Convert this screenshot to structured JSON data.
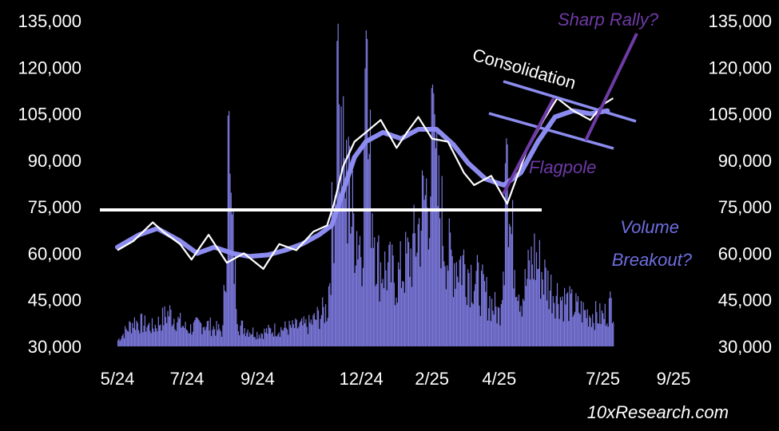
{
  "chart_data": {
    "type": "line",
    "title": "",
    "xlabel": "",
    "ylabel": "",
    "ylim": [
      30000,
      135000
    ],
    "x_ticks": [
      "5/24",
      "7/24",
      "9/24",
      "12/24",
      "2/25",
      "4/25",
      "7/25",
      "9/25"
    ],
    "y_ticks_left": [
      "135,000",
      "120,000",
      "105,000",
      "90,000",
      "75,000",
      "60,000",
      "45,000",
      "30,000"
    ],
    "y_ticks_right": [
      "135,000",
      "120,000",
      "105,000",
      "90,000",
      "75,000",
      "60,000",
      "45,000",
      "30,000"
    ],
    "grid": false,
    "series": [
      {
        "kind": "price",
        "color": "#ffffff",
        "x": [
          "2024-05-01",
          "2024-05-15",
          "2024-06-01",
          "2024-06-10",
          "2024-06-25",
          "2024-07-05",
          "2024-07-20",
          "2024-08-05",
          "2024-08-20",
          "2024-09-06",
          "2024-09-20",
          "2024-10-05",
          "2024-10-20",
          "2024-11-01",
          "2024-11-07",
          "2024-11-15",
          "2024-11-25",
          "2024-12-05",
          "2024-12-18",
          "2025-01-01",
          "2025-01-10",
          "2025-01-20",
          "2025-02-01",
          "2025-02-15",
          "2025-03-01",
          "2025-03-10",
          "2025-03-25",
          "2025-04-08",
          "2025-04-25",
          "2025-05-10",
          "2025-05-22",
          "2025-06-05",
          "2025-06-20",
          "2025-07-01",
          "2025-07-10"
        ],
        "values": [
          61000,
          64000,
          70000,
          67000,
          63000,
          58000,
          66000,
          57000,
          60000,
          55000,
          63000,
          61000,
          67000,
          69000,
          76000,
          88000,
          96000,
          99000,
          103000,
          94000,
          99000,
          104000,
          97000,
          96000,
          86000,
          82000,
          85000,
          76000,
          93000,
          103000,
          110000,
          106000,
          103000,
          108000,
          110000
        ]
      },
      {
        "kind": "moving-average",
        "color": "#8c8cf0",
        "x": [
          "2024-05-01",
          "2024-05-20",
          "2024-06-05",
          "2024-06-25",
          "2024-07-10",
          "2024-07-25",
          "2024-08-10",
          "2024-08-25",
          "2024-09-10",
          "2024-09-25",
          "2024-10-10",
          "2024-10-25",
          "2024-11-05",
          "2024-11-15",
          "2024-11-25",
          "2024-12-05",
          "2024-12-20",
          "2025-01-05",
          "2025-01-20",
          "2025-02-05",
          "2025-02-20",
          "2025-03-05",
          "2025-03-20",
          "2025-04-05",
          "2025-04-20",
          "2025-05-05",
          "2025-05-20",
          "2025-06-05",
          "2025-06-20",
          "2025-07-05"
        ],
        "values": [
          62000,
          66000,
          68000,
          64000,
          60000,
          62000,
          60000,
          59000,
          59500,
          61000,
          63000,
          66000,
          69000,
          80000,
          91000,
          96000,
          99000,
          97000,
          100000,
          100000,
          95000,
          89000,
          84000,
          82000,
          86000,
          96000,
          104000,
          106000,
          105000,
          106000
        ]
      },
      {
        "kind": "volume",
        "color": "#7b78dc",
        "x": [
          "2024-05-01",
          "2024-05-15",
          "2024-06-01",
          "2024-06-15",
          "2024-07-01",
          "2024-07-15",
          "2024-08-01",
          "2024-08-06",
          "2024-08-15",
          "2024-09-01",
          "2024-09-15",
          "2024-10-01",
          "2024-10-15",
          "2024-11-01",
          "2024-11-10",
          "2024-11-20",
          "2024-12-01",
          "2024-12-05",
          "2024-12-15",
          "2025-01-01",
          "2025-01-15",
          "2025-02-01",
          "2025-02-15",
          "2025-03-01",
          "2025-03-15",
          "2025-04-01",
          "2025-04-07",
          "2025-04-20",
          "2025-05-01",
          "2025-05-15",
          "2025-06-01",
          "2025-06-15",
          "2025-07-01",
          "2025-07-10"
        ],
        "values": [
          33000,
          42000,
          39000,
          46000,
          38000,
          41000,
          37000,
          110000,
          40000,
          36000,
          38000,
          39000,
          40000,
          48000,
          135000,
          95000,
          80000,
          134000,
          70000,
          62000,
          75000,
          115000,
          72000,
          70000,
          58000,
          45000,
          98000,
          52000,
          73000,
          58000,
          50000,
          46000,
          44000,
          52000
        ]
      }
    ],
    "annotations": [
      {
        "text": "Sharp Rally?",
        "color": "#6e3aa6"
      },
      {
        "text": "Consolidation",
        "color": "#ffffff"
      },
      {
        "text": "Flagpole",
        "color": "#6e3aa6"
      },
      {
        "text": "Volume",
        "color": "#6e6ee0"
      },
      {
        "text": "Breakout?",
        "color": "#6e6ee0"
      }
    ],
    "reference_lines": [
      {
        "kind": "horizontal-support",
        "y": 74000,
        "color": "#ffffff"
      }
    ],
    "credit": "10xResearch.com"
  }
}
